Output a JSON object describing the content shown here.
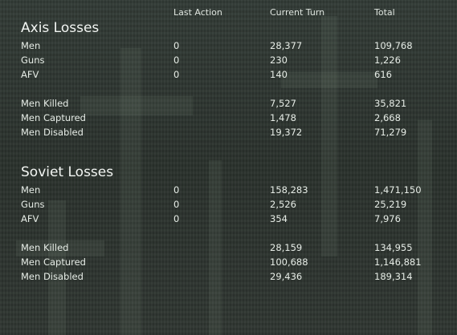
{
  "headers": {
    "last_action": "Last Action",
    "current_turn": "Current Turn",
    "total": "Total"
  },
  "axis": {
    "title": "Axis Losses",
    "rows": [
      {
        "label": "Men",
        "last": "0",
        "current": "28,377",
        "total": "109,768"
      },
      {
        "label": "Guns",
        "last": "0",
        "current": "230",
        "total": "1,226"
      },
      {
        "label": "AFV",
        "last": "0",
        "current": "140",
        "total": "616"
      },
      {
        "label": "Men Killed",
        "last": "",
        "current": "7,527",
        "total": "35,821"
      },
      {
        "label": "Men Captured",
        "last": "",
        "current": "1,478",
        "total": "2,668"
      },
      {
        "label": "Men Disabled",
        "last": "",
        "current": "19,372",
        "total": "71,279"
      }
    ]
  },
  "soviet": {
    "title": "Soviet Losses",
    "rows": [
      {
        "label": "Men",
        "last": "0",
        "current": "158,283",
        "total": "1,471,150"
      },
      {
        "label": "Guns",
        "last": "0",
        "current": "2,526",
        "total": "25,219"
      },
      {
        "label": "AFV",
        "last": "0",
        "current": "354",
        "total": "7,976"
      },
      {
        "label": "Men Killed",
        "last": "",
        "current": "28,159",
        "total": "134,955"
      },
      {
        "label": "Men Captured",
        "last": "",
        "current": "100,688",
        "total": "1,146,881"
      },
      {
        "label": "Men Disabled",
        "last": "",
        "current": "29,436",
        "total": "189,314"
      }
    ]
  }
}
